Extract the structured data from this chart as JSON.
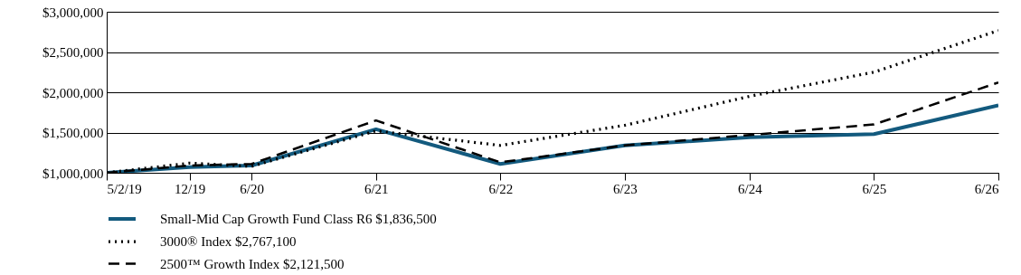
{
  "chart_data": {
    "type": "line",
    "x": [
      "2019-05-02",
      "2019-12-31",
      "2020-06-30",
      "2021-06-30",
      "2022-06-30",
      "2023-06-30",
      "2024-06-30",
      "2025-06-30",
      "2026-06-30"
    ],
    "xlim": [
      "2019-05-02",
      "2026-06-30"
    ],
    "xticks": [
      {
        "value": "2019-05-02",
        "label": "5/2/19"
      },
      {
        "value": "2019-12-31",
        "label": "12/19"
      },
      {
        "value": "2020-06-30",
        "label": "6/20"
      },
      {
        "value": "2021-06-30",
        "label": "6/21"
      },
      {
        "value": "2022-06-30",
        "label": "6/22"
      },
      {
        "value": "2023-06-30",
        "label": "6/23"
      },
      {
        "value": "2024-06-30",
        "label": "6/24"
      },
      {
        "value": "2025-06-30",
        "label": "6/25"
      },
      {
        "value": "2026-06-30",
        "label": "6/26"
      }
    ],
    "ylim": [
      1000000,
      3000000
    ],
    "yticks": [
      {
        "value": 1000000,
        "label": "$1,000,000"
      },
      {
        "value": 1500000,
        "label": "$1,500,000"
      },
      {
        "value": 2000000,
        "label": "$2,000,000"
      },
      {
        "value": 2500000,
        "label": "$2,500,000"
      },
      {
        "value": 3000000,
        "label": "$3,000,000"
      }
    ],
    "grid": "y",
    "legend": "bottom left",
    "series": [
      {
        "name": "Small-Mid Cap Growth Fund Class R6 $1,836,500",
        "color": "#135a7e",
        "line_style": "solid",
        "values": [
          1000000,
          1070000,
          1090000,
          1540000,
          1110000,
          1340000,
          1440000,
          1480000,
          1836500
        ]
      },
      {
        "name": "3000® Index $2,767,100",
        "color": "#000000",
        "line_style": "dotted",
        "values": [
          1000000,
          1120000,
          1080000,
          1520000,
          1340000,
          1590000,
          1950000,
          2250000,
          2767100
        ]
      },
      {
        "name": "2500™ Growth Index $2,121,500",
        "color": "#000000",
        "line_style": "dashed",
        "values": [
          1000000,
          1090000,
          1110000,
          1650000,
          1130000,
          1340000,
          1470000,
          1600000,
          2121500
        ]
      }
    ]
  }
}
